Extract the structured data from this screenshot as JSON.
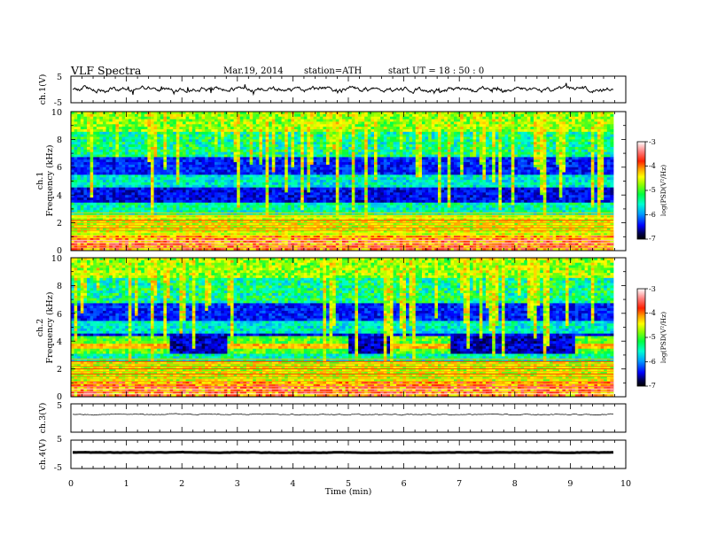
{
  "header": {
    "title": "VLF Spectra",
    "date": "Mar.19, 2014",
    "station": "station=ATH",
    "start": "start  UT =   18 : 50 : 0"
  },
  "chart_data": [
    {
      "type": "line",
      "name": "ch1-waveform",
      "ylabel": "ch.1(V)",
      "ylim": [
        -5,
        5
      ],
      "yticks": [
        "5",
        "-5"
      ],
      "xlim": [
        0,
        10
      ]
    },
    {
      "type": "heatmap",
      "name": "ch1-spectrogram",
      "ylabel_top": "ch.1",
      "ylabel": "Frequency (kHz)",
      "ylim": [
        0,
        10
      ],
      "yticks": [
        "10",
        "8",
        "6",
        "4",
        "2",
        "0"
      ],
      "xlim": [
        0,
        10
      ],
      "colorbar_label": "log(PSD(V²/Hz)",
      "colorbar_ticks": [
        "-3",
        "-4",
        "-5",
        "-6",
        "-7"
      ]
    },
    {
      "type": "heatmap",
      "name": "ch2-spectrogram",
      "ylabel_top": "ch.2",
      "ylabel": "Frequency (kHz)",
      "ylim": [
        0,
        10
      ],
      "yticks": [
        "10",
        "8",
        "6",
        "4",
        "2",
        "0"
      ],
      "xlim": [
        0,
        10
      ],
      "colorbar_label": "log(PSD(V²/Hz)",
      "colorbar_ticks": [
        "-3",
        "-4",
        "-5",
        "-6",
        "-7"
      ]
    },
    {
      "type": "line",
      "name": "ch3-waveform",
      "ylabel": "ch.3(V)",
      "ylim": [
        -5,
        5
      ],
      "yticks": [
        "5"
      ],
      "xlim": [
        0,
        10
      ]
    },
    {
      "type": "line",
      "name": "ch4-waveform",
      "ylabel": "ch.4(V)",
      "ylim": [
        -5,
        5
      ],
      "yticks": [
        "5",
        "-5"
      ],
      "xlim": [
        0,
        10
      ]
    }
  ],
  "xaxis": {
    "label": "Time (min)",
    "ticks": [
      "0",
      "1",
      "2",
      "3",
      "4",
      "5",
      "6",
      "7",
      "8",
      "9",
      "10"
    ]
  }
}
